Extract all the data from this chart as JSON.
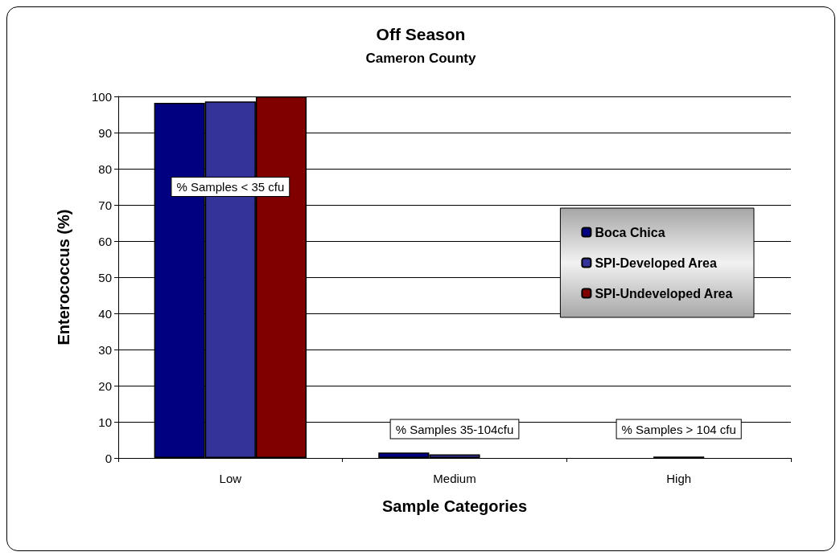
{
  "chart_data": {
    "type": "bar",
    "title": "Off Season",
    "subtitle": "Cameron County",
    "xlabel": "Sample Categories",
    "ylabel": "Enterococcus (%)",
    "categories": [
      "Low",
      "Medium",
      "High"
    ],
    "series": [
      {
        "name": "Boca Chica",
        "color": "#000080",
        "values": [
          98.2,
          1.5,
          null
        ]
      },
      {
        "name": "SPI-Developed Area",
        "color": "#333399",
        "values": [
          98.6,
          1.0,
          0.4
        ]
      },
      {
        "name": "SPI-Undeveloped Area",
        "color": "#800000",
        "values": [
          100,
          null,
          null
        ]
      }
    ],
    "ylim": [
      0,
      100
    ],
    "yticks": [
      0,
      10,
      20,
      30,
      40,
      50,
      60,
      70,
      80,
      90,
      100
    ],
    "grid": "y",
    "legend": "right",
    "annotations": [
      "% Samples < 35 cfu",
      "% Samples 35-104cfu",
      "% Samples > 104 cfu"
    ]
  }
}
